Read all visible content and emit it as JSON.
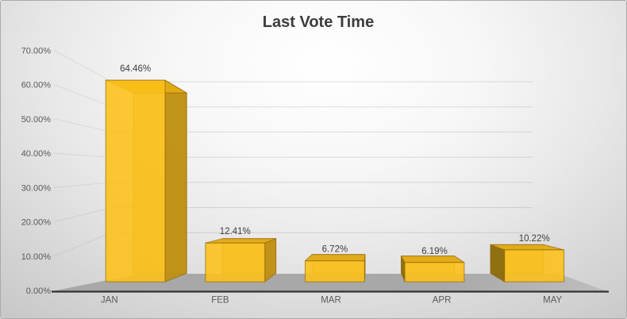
{
  "title": "Last Vote Time",
  "chart_data": {
    "type": "bar",
    "subtype": "3d-perspective-column",
    "title": "Last Vote Time",
    "categories": [
      "JAN",
      "FEB",
      "MAR",
      "APR",
      "MAY"
    ],
    "values": [
      64.46,
      12.41,
      6.72,
      6.19,
      10.22
    ],
    "data_labels": [
      "64.46%",
      "12.41%",
      "6.72%",
      "6.19%",
      "10.22%"
    ],
    "xlabel": "",
    "ylabel": "",
    "ylim": [
      0,
      70
    ],
    "ytick_step": 10,
    "ytick_labels": [
      "0.00%",
      "10.00%",
      "20.00%",
      "30.00%",
      "40.00%",
      "50.00%",
      "60.00%",
      "70.00%"
    ],
    "grid": true,
    "legend": false,
    "colors": {
      "bar_front": "#FCC017",
      "bar_top": "#E3AA14",
      "bar_side_right": "#BE8F10",
      "bar_side_left": "#8A6A08",
      "bar_back": "#CD9614",
      "bar_edge": "#946A08",
      "data_label": "#3F3F3F",
      "axis_label": "#595959",
      "title_color": "#3D3D3D",
      "floor_dark": "#A8A8A8",
      "floor_light": "#BEBEBE",
      "axis_line": "#333333",
      "gridline": "#8C8C8C"
    }
  }
}
